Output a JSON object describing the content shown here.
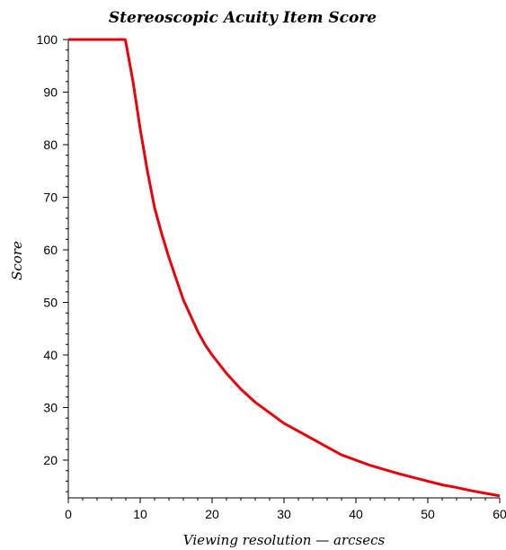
{
  "chart_data": {
    "type": "line",
    "title": "Stereoscopic Acuity Item Score",
    "xlabel": "Viewing resolution — arcsecs",
    "ylabel": "Score",
    "xlim": [
      0,
      60
    ],
    "ylim": [
      13,
      100
    ],
    "x_ticks": [
      0,
      10,
      20,
      30,
      40,
      50,
      60
    ],
    "y_ticks": [
      20,
      30,
      40,
      50,
      60,
      70,
      80,
      90,
      100
    ],
    "grid": false,
    "series_color": "#e8000b",
    "series": [
      {
        "x": [
          0,
          2,
          4,
          6,
          7.9,
          8,
          9,
          10,
          11,
          12,
          13,
          14,
          15,
          16,
          17,
          18,
          19,
          20,
          22,
          24,
          26,
          28,
          30,
          32,
          34,
          36,
          38,
          40,
          42,
          44,
          46,
          48,
          50,
          52,
          54,
          56,
          58,
          60
        ],
        "y": [
          100,
          100,
          100,
          100,
          100,
          99.5,
          92,
          83,
          75,
          68,
          63,
          58.5,
          54.5,
          50.5,
          47.5,
          44.5,
          42,
          40,
          36.5,
          33.5,
          31,
          29,
          27,
          25.5,
          24,
          22.5,
          21,
          20,
          19,
          18.2,
          17.4,
          16.7,
          16,
          15.3,
          14.8,
          14.2,
          13.7,
          13.2
        ]
      }
    ]
  }
}
